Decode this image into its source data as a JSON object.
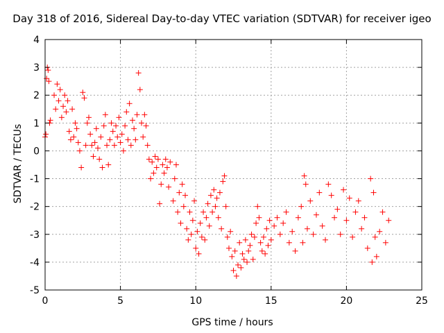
{
  "chart_data": {
    "type": "scatter",
    "title": "Day 318 of 2016, Sidereal Day-to-day VTEC variation (SDTVAR) for receiver igeo",
    "xlabel": "GPS time / hours",
    "ylabel": "SDTVAR / TECUs",
    "xlim": [
      0,
      25
    ],
    "ylim": [
      -5,
      4
    ],
    "xticks": [
      "0",
      "5",
      "10",
      "15",
      "20",
      "25"
    ],
    "yticks": [
      "-5",
      "-4",
      "-3",
      "-2",
      "-1",
      "0",
      "1",
      "2",
      "3",
      "4"
    ],
    "grid": true,
    "marker": "+",
    "color": "#ff0000",
    "series": [
      {
        "name": "igeo",
        "points": [
          [
            0.0,
            0.5
          ],
          [
            0.05,
            0.6
          ],
          [
            0.1,
            2.6
          ],
          [
            0.15,
            3.0
          ],
          [
            0.2,
            2.9
          ],
          [
            0.25,
            2.5
          ],
          [
            0.3,
            1.0
          ],
          [
            0.35,
            1.1
          ],
          [
            0.6,
            2.0
          ],
          [
            0.7,
            1.5
          ],
          [
            0.8,
            2.4
          ],
          [
            0.9,
            1.8
          ],
          [
            1.0,
            2.2
          ],
          [
            1.1,
            1.2
          ],
          [
            1.2,
            1.6
          ],
          [
            1.3,
            2.0
          ],
          [
            1.4,
            1.4
          ],
          [
            1.5,
            1.8
          ],
          [
            1.6,
            0.7
          ],
          [
            1.7,
            0.4
          ],
          [
            1.8,
            1.5
          ],
          [
            1.9,
            0.5
          ],
          [
            2.0,
            1.0
          ],
          [
            2.1,
            0.8
          ],
          [
            2.2,
            0.3
          ],
          [
            2.3,
            0.0
          ],
          [
            2.4,
            -0.6
          ],
          [
            2.5,
            2.1
          ],
          [
            2.6,
            1.9
          ],
          [
            2.7,
            0.2
          ],
          [
            2.8,
            1.0
          ],
          [
            2.9,
            1.2
          ],
          [
            3.0,
            0.6
          ],
          [
            3.1,
            0.2
          ],
          [
            3.2,
            -0.2
          ],
          [
            3.3,
            0.3
          ],
          [
            3.4,
            0.8
          ],
          [
            3.5,
            0.1
          ],
          [
            3.6,
            -0.3
          ],
          [
            3.7,
            0.5
          ],
          [
            3.8,
            -0.6
          ],
          [
            3.9,
            0.9
          ],
          [
            4.0,
            1.3
          ],
          [
            4.1,
            0.2
          ],
          [
            4.2,
            -0.5
          ],
          [
            4.3,
            0.4
          ],
          [
            4.4,
            1.0
          ],
          [
            4.5,
            0.7
          ],
          [
            4.6,
            0.2
          ],
          [
            4.7,
            0.9
          ],
          [
            4.8,
            0.5
          ],
          [
            4.9,
            1.2
          ],
          [
            5.0,
            0.3
          ],
          [
            5.1,
            0.6
          ],
          [
            5.2,
            0.0
          ],
          [
            5.3,
            0.9
          ],
          [
            5.4,
            1.4
          ],
          [
            5.5,
            0.4
          ],
          [
            5.6,
            1.7
          ],
          [
            5.7,
            0.2
          ],
          [
            5.8,
            1.1
          ],
          [
            5.9,
            0.8
          ],
          [
            6.0,
            0.4
          ],
          [
            6.1,
            1.3
          ],
          [
            6.2,
            2.8
          ],
          [
            6.3,
            2.2
          ],
          [
            6.4,
            1.0
          ],
          [
            6.5,
            0.5
          ],
          [
            6.6,
            1.3
          ],
          [
            6.7,
            0.9
          ],
          [
            6.8,
            0.2
          ],
          [
            6.9,
            -0.3
          ],
          [
            7.0,
            -1.0
          ],
          [
            7.1,
            -0.4
          ],
          [
            7.2,
            -0.8
          ],
          [
            7.3,
            -0.2
          ],
          [
            7.4,
            -0.6
          ],
          [
            7.5,
            -0.3
          ],
          [
            7.6,
            -1.9
          ],
          [
            7.7,
            -1.2
          ],
          [
            7.8,
            -0.5
          ],
          [
            7.9,
            -0.8
          ],
          [
            8.0,
            -0.3
          ],
          [
            8.1,
            -0.6
          ],
          [
            8.2,
            -1.3
          ],
          [
            8.3,
            -0.4
          ],
          [
            8.5,
            -1.8
          ],
          [
            8.6,
            -1.0
          ],
          [
            8.7,
            -0.5
          ],
          [
            8.8,
            -2.2
          ],
          [
            8.9,
            -1.5
          ],
          [
            9.0,
            -2.6
          ],
          [
            9.1,
            -1.2
          ],
          [
            9.2,
            -2.0
          ],
          [
            9.3,
            -1.6
          ],
          [
            9.4,
            -2.8
          ],
          [
            9.5,
            -3.2
          ],
          [
            9.6,
            -2.2
          ],
          [
            9.7,
            -3.0
          ],
          [
            9.8,
            -2.5
          ],
          [
            9.9,
            -1.8
          ],
          [
            10.0,
            -3.5
          ],
          [
            10.1,
            -2.9
          ],
          [
            10.2,
            -3.7
          ],
          [
            10.3,
            -2.6
          ],
          [
            10.4,
            -3.1
          ],
          [
            10.5,
            -2.2
          ],
          [
            10.6,
            -3.2
          ],
          [
            10.7,
            -2.4
          ],
          [
            10.8,
            -1.9
          ],
          [
            10.9,
            -2.7
          ],
          [
            11.0,
            -1.6
          ],
          [
            11.1,
            -2.2
          ],
          [
            11.2,
            -1.4
          ],
          [
            11.3,
            -2.0
          ],
          [
            11.4,
            -1.7
          ],
          [
            11.5,
            -2.4
          ],
          [
            11.6,
            -1.5
          ],
          [
            11.7,
            -2.8
          ],
          [
            11.8,
            -1.1
          ],
          [
            11.9,
            -0.9
          ],
          [
            12.0,
            -2.0
          ],
          [
            12.1,
            -3.1
          ],
          [
            12.2,
            -3.5
          ],
          [
            12.3,
            -2.9
          ],
          [
            12.4,
            -3.8
          ],
          [
            12.5,
            -4.3
          ],
          [
            12.6,
            -3.6
          ],
          [
            12.7,
            -4.5
          ],
          [
            12.8,
            -4.1
          ],
          [
            12.9,
            -3.3
          ],
          [
            13.0,
            -4.2
          ],
          [
            13.1,
            -3.7
          ],
          [
            13.2,
            -3.9
          ],
          [
            13.3,
            -3.2
          ],
          [
            13.4,
            -4.0
          ],
          [
            13.5,
            -3.6
          ],
          [
            13.6,
            -3.4
          ],
          [
            13.7,
            -3.0
          ],
          [
            13.8,
            -3.9
          ],
          [
            13.9,
            -3.1
          ],
          [
            14.0,
            -2.6
          ],
          [
            14.1,
            -2.0
          ],
          [
            14.2,
            -2.4
          ],
          [
            14.3,
            -3.3
          ],
          [
            14.4,
            -3.6
          ],
          [
            14.5,
            -3.1
          ],
          [
            14.6,
            -3.7
          ],
          [
            14.7,
            -2.8
          ],
          [
            14.8,
            -3.4
          ],
          [
            14.9,
            -2.5
          ],
          [
            15.0,
            -3.2
          ],
          [
            15.2,
            -2.7
          ],
          [
            15.4,
            -2.4
          ],
          [
            15.6,
            -3.0
          ],
          [
            15.8,
            -2.6
          ],
          [
            16.0,
            -2.2
          ],
          [
            16.2,
            -3.3
          ],
          [
            16.4,
            -2.9
          ],
          [
            16.6,
            -3.6
          ],
          [
            16.8,
            -2.4
          ],
          [
            17.0,
            -2.0
          ],
          [
            17.1,
            -3.3
          ],
          [
            17.2,
            -0.9
          ],
          [
            17.3,
            -1.2
          ],
          [
            17.4,
            -2.8
          ],
          [
            17.6,
            -1.8
          ],
          [
            17.8,
            -3.0
          ],
          [
            18.0,
            -2.3
          ],
          [
            18.2,
            -1.5
          ],
          [
            18.4,
            -2.7
          ],
          [
            18.6,
            -3.2
          ],
          [
            18.8,
            -1.2
          ],
          [
            19.0,
            -1.6
          ],
          [
            19.2,
            -2.4
          ],
          [
            19.4,
            -2.1
          ],
          [
            19.6,
            -3.0
          ],
          [
            19.8,
            -1.4
          ],
          [
            20.0,
            -2.5
          ],
          [
            20.2,
            -1.7
          ],
          [
            20.4,
            -3.1
          ],
          [
            20.6,
            -2.2
          ],
          [
            20.8,
            -1.8
          ],
          [
            21.0,
            -2.8
          ],
          [
            21.2,
            -2.4
          ],
          [
            21.4,
            -3.5
          ],
          [
            21.6,
            -1.0
          ],
          [
            21.7,
            -4.0
          ],
          [
            21.8,
            -1.5
          ],
          [
            21.9,
            -3.1
          ],
          [
            22.0,
            -3.8
          ],
          [
            22.2,
            -2.9
          ],
          [
            22.4,
            -2.2
          ],
          [
            22.6,
            -3.3
          ],
          [
            22.8,
            -2.5
          ]
        ]
      }
    ]
  }
}
